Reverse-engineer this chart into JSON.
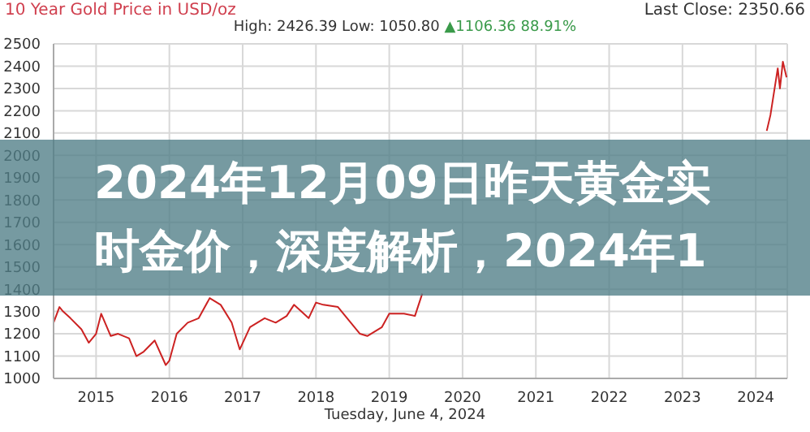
{
  "chart_data": {
    "type": "line",
    "title": "10 Year Gold Price in USD/oz",
    "subtitle": "High: 2426.39 Low: 1050.80",
    "annotations": [
      "▲1106.36 88.91%",
      "Last Close: 2350.66",
      "Tuesday, June 4, 2024",
      "2024年12月09日昨天黄金实时金价，深度解析，2024年1"
    ],
    "x": [
      2014.42,
      2014.5,
      2014.55,
      2014.65,
      2014.8,
      2014.9,
      2015.0,
      2015.07,
      2015.2,
      2015.3,
      2015.45,
      2015.55,
      2015.65,
      2015.8,
      2015.95,
      2016.0,
      2016.1,
      2016.25,
      2016.4,
      2016.55,
      2016.7,
      2016.85,
      2016.96,
      2017.1,
      2017.3,
      2017.45,
      2017.6,
      2017.7,
      2017.9,
      2018.0,
      2018.1,
      2018.3,
      2018.45,
      2018.6,
      2018.7,
      2018.9,
      2019.0,
      2019.2,
      2019.35,
      2019.45,
      2019.5,
      2019.7,
      2019.85,
      2020.0,
      2020.15,
      2020.25,
      2020.35,
      2020.5,
      2020.6,
      2020.7,
      2020.9,
      2021.0,
      2021.2,
      2021.4,
      2021.6,
      2021.75,
      2022.0,
      2022.2,
      2022.5,
      2022.75,
      2022.9,
      2023.1,
      2023.2,
      2023.35,
      2023.5,
      2023.75,
      2023.95,
      2024.1,
      2024.15,
      2024.2,
      2024.3,
      2024.33,
      2024.37,
      2024.42
    ],
    "series": [
      {
        "color": "#cc2222",
        "values": [
          1250,
          1320,
          1300,
          1270,
          1220,
          1160,
          1200,
          1290,
          1190,
          1200,
          1180,
          1100,
          1120,
          1170,
          1060,
          1080,
          1200,
          1250,
          1270,
          1360,
          1330,
          1250,
          1130,
          1230,
          1270,
          1250,
          1280,
          1330,
          1270,
          1340,
          1330,
          1320,
          1260,
          1200,
          1190,
          1230,
          1290,
          1290,
          1280,
          1380,
          null,
          null,
          null,
          null,
          null,
          null,
          null,
          null,
          null,
          null,
          null,
          null,
          null,
          null,
          null,
          null,
          null,
          null,
          null,
          null,
          null,
          null,
          null,
          null,
          null,
          null,
          null,
          null,
          2110,
          2180,
          2390,
          2300,
          2420,
          2350
        ]
      }
    ],
    "xlim": [
      2014.42,
      2024.43
    ],
    "xticks": [
      2015,
      2016,
      2017,
      2018,
      2019,
      2020,
      2021,
      2022,
      2023,
      2024
    ],
    "ylim": [
      1000,
      2500
    ],
    "yticks": [
      1000,
      1100,
      1200,
      1300,
      1400,
      1500,
      1600,
      1700,
      1800,
      1900,
      2000,
      2100,
      2200,
      2300,
      2400,
      2500
    ],
    "grid": true,
    "legend": false,
    "marker": "none",
    "line_style": "solid"
  }
}
